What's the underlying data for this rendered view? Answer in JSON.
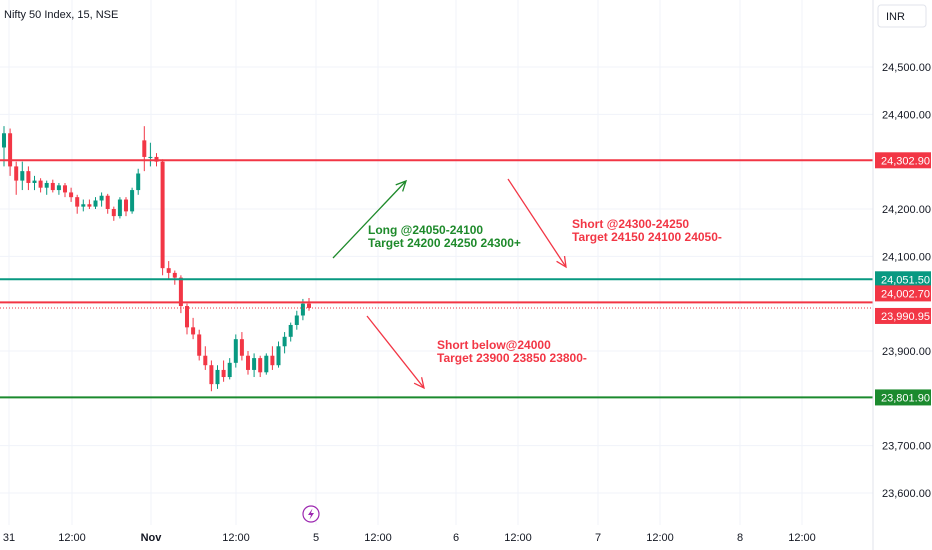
{
  "chart_data": {
    "type": "candlestick",
    "symbol": "Nifty 50 Index, 15, NSE",
    "currency": "INR",
    "ylim": [
      23550,
      24580
    ],
    "y_ticks": [
      "24,500.00",
      "24,400.00",
      "24,200.00",
      "24,100.00",
      "23,900.00",
      "23,700.00",
      "23,600.00"
    ],
    "x_ticks": [
      "31",
      "12:00",
      "Nov",
      "12:00",
      "5",
      "12:00",
      "6",
      "12:00",
      "7",
      "12:00",
      "8",
      "12:00"
    ],
    "candles": [
      {
        "o": 24330,
        "h": 24375,
        "l": 24290,
        "c": 24360
      },
      {
        "o": 24360,
        "h": 24370,
        "l": 24270,
        "c": 24290
      },
      {
        "o": 24290,
        "h": 24300,
        "l": 24230,
        "c": 24260
      },
      {
        "o": 24260,
        "h": 24300,
        "l": 24240,
        "c": 24280
      },
      {
        "o": 24280,
        "h": 24290,
        "l": 24240,
        "c": 24255
      },
      {
        "o": 24255,
        "h": 24270,
        "l": 24240,
        "c": 24260
      },
      {
        "o": 24260,
        "h": 24265,
        "l": 24235,
        "c": 24245
      },
      {
        "o": 24245,
        "h": 24260,
        "l": 24230,
        "c": 24255
      },
      {
        "o": 24255,
        "h": 24262,
        "l": 24235,
        "c": 24240
      },
      {
        "o": 24240,
        "h": 24255,
        "l": 24230,
        "c": 24250
      },
      {
        "o": 24250,
        "h": 24255,
        "l": 24225,
        "c": 24235
      },
      {
        "o": 24235,
        "h": 24245,
        "l": 24215,
        "c": 24225
      },
      {
        "o": 24225,
        "h": 24230,
        "l": 24190,
        "c": 24205
      },
      {
        "o": 24205,
        "h": 24220,
        "l": 24195,
        "c": 24210
      },
      {
        "o": 24210,
        "h": 24220,
        "l": 24200,
        "c": 24205
      },
      {
        "o": 24205,
        "h": 24225,
        "l": 24200,
        "c": 24218
      },
      {
        "o": 24218,
        "h": 24235,
        "l": 24205,
        "c": 24228
      },
      {
        "o": 24228,
        "h": 24232,
        "l": 24190,
        "c": 24200
      },
      {
        "o": 24200,
        "h": 24205,
        "l": 24175,
        "c": 24185
      },
      {
        "o": 24185,
        "h": 24225,
        "l": 24180,
        "c": 24220
      },
      {
        "o": 24220,
        "h": 24225,
        "l": 24185,
        "c": 24195
      },
      {
        "o": 24195,
        "h": 24245,
        "l": 24190,
        "c": 24240
      },
      {
        "o": 24240,
        "h": 24285,
        "l": 24230,
        "c": 24275
      },
      {
        "o": 24345,
        "h": 24375,
        "l": 24280,
        "c": 24310
      },
      {
        "o": 24310,
        "h": 24340,
        "l": 24290,
        "c": 24310
      },
      {
        "o": 24310,
        "h": 24318,
        "l": 24290,
        "c": 24300
      },
      {
        "o": 24300,
        "h": 24305,
        "l": 24060,
        "c": 24075
      },
      {
        "o": 24075,
        "h": 24090,
        "l": 24050,
        "c": 24065
      },
      {
        "o": 24065,
        "h": 24070,
        "l": 24040,
        "c": 24055
      },
      {
        "o": 24055,
        "h": 24060,
        "l": 23980,
        "c": 23995
      },
      {
        "o": 23995,
        "h": 24000,
        "l": 23935,
        "c": 23950
      },
      {
        "o": 23950,
        "h": 23970,
        "l": 23925,
        "c": 23935
      },
      {
        "o": 23935,
        "h": 23945,
        "l": 23880,
        "c": 23890
      },
      {
        "o": 23890,
        "h": 23910,
        "l": 23860,
        "c": 23870
      },
      {
        "o": 23870,
        "h": 23880,
        "l": 23815,
        "c": 23830
      },
      {
        "o": 23830,
        "h": 23870,
        "l": 23820,
        "c": 23860
      },
      {
        "o": 23860,
        "h": 23880,
        "l": 23835,
        "c": 23845
      },
      {
        "o": 23845,
        "h": 23885,
        "l": 23840,
        "c": 23875
      },
      {
        "o": 23875,
        "h": 23935,
        "l": 23865,
        "c": 23925
      },
      {
        "o": 23925,
        "h": 23940,
        "l": 23880,
        "c": 23890
      },
      {
        "o": 23890,
        "h": 23900,
        "l": 23850,
        "c": 23860
      },
      {
        "o": 23860,
        "h": 23895,
        "l": 23845,
        "c": 23885
      },
      {
        "o": 23885,
        "h": 23890,
        "l": 23845,
        "c": 23855
      },
      {
        "o": 23855,
        "h": 23895,
        "l": 23850,
        "c": 23890
      },
      {
        "o": 23890,
        "h": 23910,
        "l": 23860,
        "c": 23870
      },
      {
        "o": 23870,
        "h": 23920,
        "l": 23865,
        "c": 23910
      },
      {
        "o": 23910,
        "h": 23940,
        "l": 23895,
        "c": 23930
      },
      {
        "o": 23930,
        "h": 23960,
        "l": 23920,
        "c": 23955
      },
      {
        "o": 23955,
        "h": 23985,
        "l": 23945,
        "c": 23975
      },
      {
        "o": 23975,
        "h": 24010,
        "l": 23965,
        "c": 24000
      },
      {
        "o": 24000,
        "h": 24012,
        "l": 23985,
        "c": 23991
      }
    ],
    "levels": [
      {
        "value": 24302.9,
        "label": "24,302.90",
        "color": "#f23645",
        "style": "solid"
      },
      {
        "value": 24051.5,
        "label": "24,051.50",
        "color": "#089981",
        "style": "solid"
      },
      {
        "value": 24002.7,
        "label": "24,002.70",
        "color": "#f23645",
        "style": "solid"
      },
      {
        "value": 23990.95,
        "label": "23,990.95",
        "color": "#f23645",
        "style": "dotted"
      },
      {
        "value": 23801.9,
        "label": "23,801.90",
        "color": "#1b8a2e",
        "style": "solid"
      }
    ],
    "annotations": [
      {
        "lines": [
          "Long @24050-24100",
          "Target 24200 24250 24300+"
        ],
        "color": "#1e8a2b"
      },
      {
        "lines": [
          "Short @24300-24250",
          "Target 24150 24100 24050-"
        ],
        "color": "#f23645"
      },
      {
        "lines": [
          "Short below@24000",
          "Target 23900 23850 23800-"
        ],
        "color": "#f23645"
      }
    ],
    "colors": {
      "up": "#089981",
      "down": "#f23645",
      "grid": "#f0f3fa",
      "text": "#131722",
      "event": "#9c27b0"
    }
  }
}
